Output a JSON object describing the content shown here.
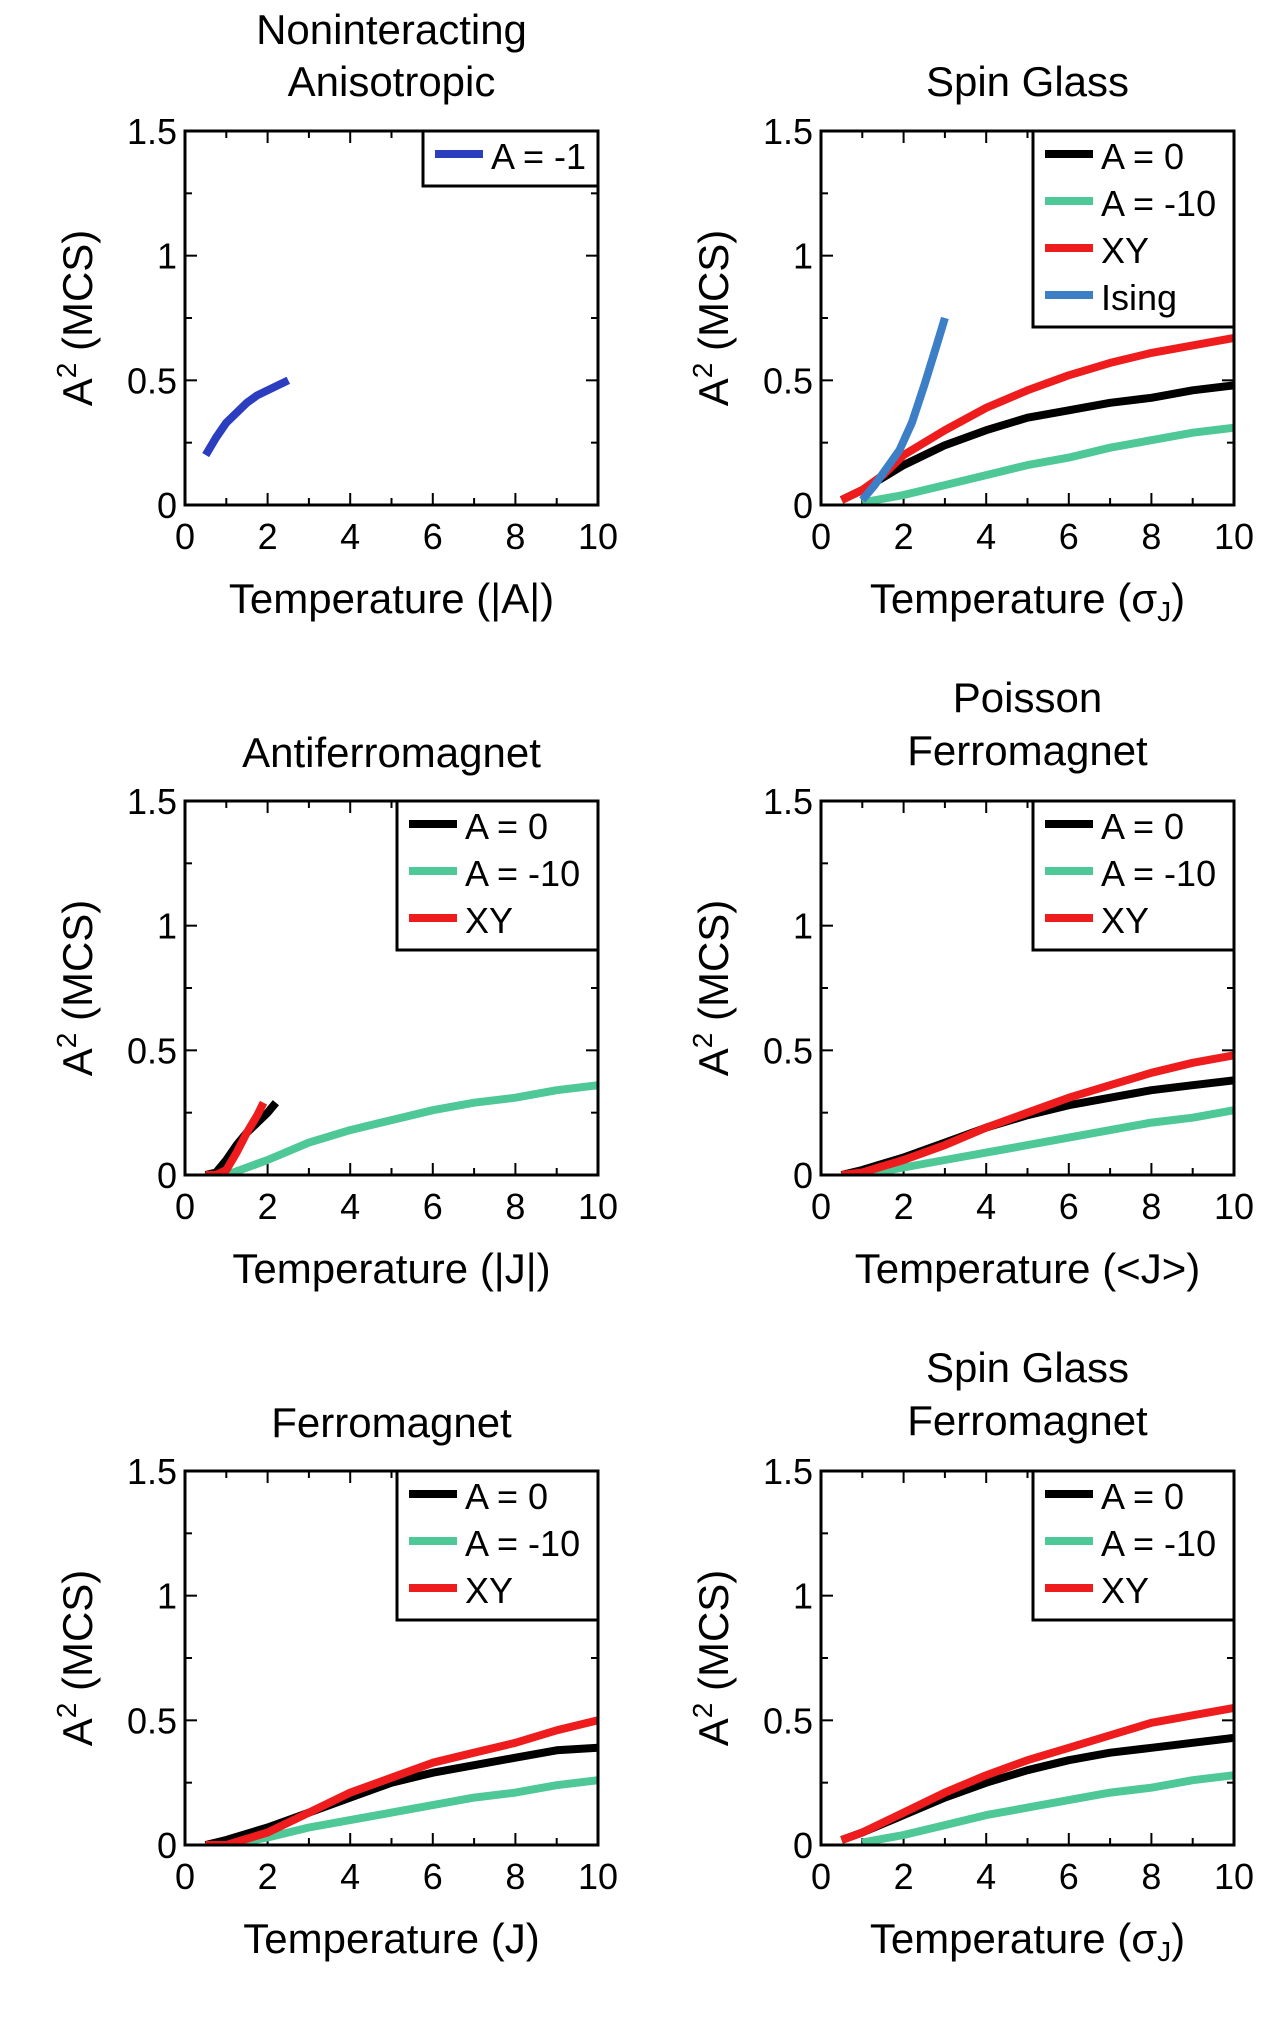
{
  "chart_data": [
    {
      "type": "line",
      "title": [
        "Noninteracting",
        "Anisotropic"
      ],
      "xlabel": "Temperature (|A|)",
      "ylabel": "A2 (MCS)",
      "xlim": [
        0,
        10
      ],
      "ylim": [
        0,
        1.5
      ],
      "xticks": [
        "0",
        "2",
        "4",
        "6",
        "8",
        "10"
      ],
      "yticks": [
        "0",
        "0.5",
        "1",
        "1.5"
      ],
      "legend_position": "top-right",
      "series": [
        {
          "name": "A = -1",
          "color": "#2b3ec0",
          "x": [
            0.5,
            0.75,
            1.0,
            1.25,
            1.5,
            1.75,
            2.0,
            2.25,
            2.5
          ],
          "y": [
            0.2,
            0.27,
            0.33,
            0.37,
            0.41,
            0.44,
            0.46,
            0.48,
            0.5
          ]
        }
      ]
    },
    {
      "type": "line",
      "title": [
        "Spin Glass"
      ],
      "xlabel": "Temperature (σJ)",
      "ylabel": "A2 (MCS)",
      "xlim": [
        0,
        10
      ],
      "ylim": [
        0,
        1.5
      ],
      "xticks": [
        "0",
        "2",
        "4",
        "6",
        "8",
        "10"
      ],
      "yticks": [
        "0",
        "0.5",
        "1",
        "1.5"
      ],
      "legend_position": "top-right",
      "series": [
        {
          "name": "A = 0",
          "color": "#000000",
          "x": [
            0.5,
            1,
            1.5,
            2,
            2.5,
            3,
            4,
            5,
            6,
            7,
            8,
            9,
            10
          ],
          "y": [
            0.02,
            0.06,
            0.11,
            0.16,
            0.2,
            0.24,
            0.3,
            0.35,
            0.38,
            0.41,
            0.43,
            0.46,
            0.48
          ]
        },
        {
          "name": "A = -10",
          "color": "#4ec896",
          "x": [
            1,
            2,
            3,
            4,
            5,
            6,
            7,
            8,
            9,
            10
          ],
          "y": [
            0.01,
            0.04,
            0.08,
            0.12,
            0.16,
            0.19,
            0.23,
            0.26,
            0.29,
            0.31
          ]
        },
        {
          "name": "XY",
          "color": "#ee1c1c",
          "x": [
            0.5,
            1,
            1.5,
            2,
            3,
            4,
            5,
            6,
            7,
            8,
            9,
            10
          ],
          "y": [
            0.02,
            0.06,
            0.12,
            0.2,
            0.3,
            0.39,
            0.46,
            0.52,
            0.57,
            0.61,
            0.64,
            0.67
          ]
        },
        {
          "name": "Ising",
          "color": "#3d7fc6",
          "x": [
            1,
            1.3,
            1.6,
            1.9,
            2.2,
            2.5,
            2.8,
            3
          ],
          "y": [
            0.02,
            0.08,
            0.15,
            0.22,
            0.33,
            0.48,
            0.64,
            0.75
          ]
        }
      ]
    },
    {
      "type": "line",
      "title": [
        "Antiferromagnet"
      ],
      "xlabel": "Temperature (|J|)",
      "ylabel": "A2 (MCS)",
      "xlim": [
        0,
        10
      ],
      "ylim": [
        0,
        1.5
      ],
      "xticks": [
        "0",
        "2",
        "4",
        "6",
        "8",
        "10"
      ],
      "yticks": [
        "0",
        "0.5",
        "1",
        "1.5"
      ],
      "legend_position": "top-right",
      "series": [
        {
          "name": "A = 0",
          "color": "#000000",
          "x": [
            0.5,
            0.75,
            1,
            1.25,
            1.5,
            1.75,
            2,
            2.2
          ],
          "y": [
            0.0,
            0.01,
            0.06,
            0.12,
            0.17,
            0.21,
            0.25,
            0.29
          ]
        },
        {
          "name": "A = -10",
          "color": "#4ec896",
          "x": [
            1,
            2,
            3,
            4,
            5,
            6,
            7,
            8,
            9,
            10
          ],
          "y": [
            0.0,
            0.06,
            0.13,
            0.18,
            0.22,
            0.26,
            0.29,
            0.31,
            0.34,
            0.36
          ]
        },
        {
          "name": "XY",
          "color": "#ee1c1c",
          "x": [
            0.5,
            0.75,
            1,
            1.25,
            1.5,
            1.75,
            1.9
          ],
          "y": [
            0.0,
            0.0,
            0.02,
            0.09,
            0.17,
            0.24,
            0.29
          ]
        }
      ]
    },
    {
      "type": "line",
      "title": [
        "Poisson",
        "Ferromagnet"
      ],
      "xlabel": "Temperature (<J>)",
      "ylabel": "A2 (MCS)",
      "xlim": [
        0,
        10
      ],
      "ylim": [
        0,
        1.5
      ],
      "xticks": [
        "0",
        "2",
        "4",
        "6",
        "8",
        "10"
      ],
      "yticks": [
        "0",
        "0.5",
        "1",
        "1.5"
      ],
      "legend_position": "top-right",
      "series": [
        {
          "name": "A = 0",
          "color": "#000000",
          "x": [
            0.5,
            1,
            2,
            3,
            4,
            5,
            6,
            7,
            8,
            9,
            10
          ],
          "y": [
            0.0,
            0.02,
            0.07,
            0.13,
            0.19,
            0.24,
            0.28,
            0.31,
            0.34,
            0.36,
            0.38
          ]
        },
        {
          "name": "A = -10",
          "color": "#4ec896",
          "x": [
            1,
            2,
            3,
            4,
            5,
            6,
            7,
            8,
            9,
            10
          ],
          "y": [
            0.0,
            0.03,
            0.06,
            0.09,
            0.12,
            0.15,
            0.18,
            0.21,
            0.23,
            0.26
          ]
        },
        {
          "name": "XY",
          "color": "#ee1c1c",
          "x": [
            0.5,
            1,
            2,
            3,
            4,
            5,
            6,
            7,
            8,
            9,
            10
          ],
          "y": [
            0.0,
            0.01,
            0.06,
            0.12,
            0.19,
            0.25,
            0.31,
            0.36,
            0.41,
            0.45,
            0.48
          ]
        }
      ]
    },
    {
      "type": "line",
      "title": [
        "Ferromagnet"
      ],
      "xlabel": "Temperature (J)",
      "ylabel": "A2 (MCS)",
      "xlim": [
        0,
        10
      ],
      "ylim": [
        0,
        1.5
      ],
      "xticks": [
        "0",
        "2",
        "4",
        "6",
        "8",
        "10"
      ],
      "yticks": [
        "0",
        "0.5",
        "1",
        "1.5"
      ],
      "legend_position": "top-right",
      "series": [
        {
          "name": "A = 0",
          "color": "#000000",
          "x": [
            0.5,
            1,
            2,
            3,
            4,
            5,
            6,
            7,
            8,
            9,
            10
          ],
          "y": [
            0.0,
            0.02,
            0.07,
            0.13,
            0.19,
            0.25,
            0.29,
            0.32,
            0.35,
            0.38,
            0.39
          ]
        },
        {
          "name": "A = -10",
          "color": "#4ec896",
          "x": [
            1,
            2,
            3,
            4,
            5,
            6,
            7,
            8,
            9,
            10
          ],
          "y": [
            0.0,
            0.03,
            0.07,
            0.1,
            0.13,
            0.16,
            0.19,
            0.21,
            0.24,
            0.26
          ]
        },
        {
          "name": "XY",
          "color": "#ee1c1c",
          "x": [
            0.5,
            1,
            2,
            3,
            4,
            5,
            6,
            7,
            8,
            9,
            10
          ],
          "y": [
            0.0,
            0.0,
            0.05,
            0.13,
            0.21,
            0.27,
            0.33,
            0.37,
            0.41,
            0.46,
            0.5
          ]
        }
      ]
    },
    {
      "type": "line",
      "title": [
        "Spin Glass",
        "Ferromagnet"
      ],
      "xlabel": "Temperature (σJ)",
      "ylabel": "A2 (MCS)",
      "xlim": [
        0,
        10
      ],
      "ylim": [
        0,
        1.5
      ],
      "xticks": [
        "0",
        "2",
        "4",
        "6",
        "8",
        "10"
      ],
      "yticks": [
        "0",
        "0.5",
        "1",
        "1.5"
      ],
      "legend_position": "top-right",
      "series": [
        {
          "name": "A = 0",
          "color": "#000000",
          "x": [
            0.5,
            1,
            2,
            3,
            4,
            5,
            6,
            7,
            8,
            9,
            10
          ],
          "y": [
            0.02,
            0.05,
            0.12,
            0.19,
            0.25,
            0.3,
            0.34,
            0.37,
            0.39,
            0.41,
            0.43
          ]
        },
        {
          "name": "A = -10",
          "color": "#4ec896",
          "x": [
            1,
            2,
            3,
            4,
            5,
            6,
            7,
            8,
            9,
            10
          ],
          "y": [
            0.01,
            0.04,
            0.08,
            0.12,
            0.15,
            0.18,
            0.21,
            0.23,
            0.26,
            0.28
          ]
        },
        {
          "name": "XY",
          "color": "#ee1c1c",
          "x": [
            0.5,
            1,
            2,
            3,
            4,
            5,
            6,
            7,
            8,
            9,
            10
          ],
          "y": [
            0.02,
            0.05,
            0.13,
            0.21,
            0.28,
            0.34,
            0.39,
            0.44,
            0.49,
            0.52,
            0.55
          ]
        }
      ]
    }
  ]
}
